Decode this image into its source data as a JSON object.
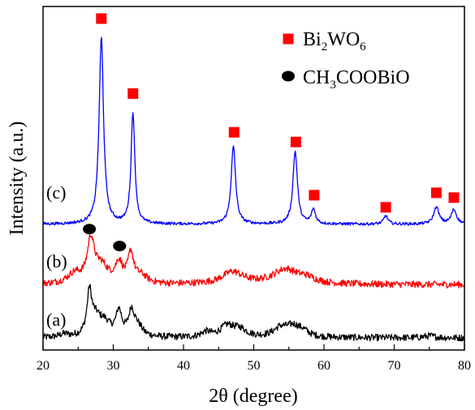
{
  "chart_data": {
    "type": "line",
    "xlabel": "2θ (degree)",
    "ylabel": "Intensity (a.u.)",
    "xlim": [
      20,
      80
    ],
    "xticks": [
      20,
      30,
      40,
      50,
      60,
      70,
      80
    ],
    "grid": false,
    "legend_position": "top-right",
    "legend": [
      {
        "marker": "square",
        "color": "#ff0000",
        "label": "Bi",
        "sub1": "2",
        "mid": "WO",
        "sub2": "6"
      },
      {
        "marker": "circle",
        "color": "#000000",
        "label": "CH",
        "sub1": "3",
        "mid": "COOBiO",
        "sub2": ""
      }
    ],
    "series": [
      {
        "name": "(a)",
        "color": "#000000",
        "baseline": 0.05,
        "peaks": [
          {
            "x": 23.0,
            "h": 0.012,
            "w": 0.8
          },
          {
            "x": 26.6,
            "h": 0.17,
            "w": 0.4
          },
          {
            "x": 27.5,
            "h": 0.07,
            "w": 0.9
          },
          {
            "x": 28.8,
            "h": 0.05,
            "w": 1.0
          },
          {
            "x": 30.8,
            "h": 0.1,
            "w": 0.5
          },
          {
            "x": 32.6,
            "h": 0.1,
            "w": 0.5
          },
          {
            "x": 33.5,
            "h": 0.04,
            "w": 0.8
          },
          {
            "x": 43.2,
            "h": 0.02,
            "w": 0.8
          },
          {
            "x": 46.2,
            "h": 0.045,
            "w": 1.2
          },
          {
            "x": 48.0,
            "h": 0.03,
            "w": 1.2
          },
          {
            "x": 53.8,
            "h": 0.035,
            "w": 1.2
          },
          {
            "x": 55.6,
            "h": 0.04,
            "w": 1.2
          },
          {
            "x": 57.0,
            "h": 0.02,
            "w": 1.0
          },
          {
            "x": 75.0,
            "h": 0.008,
            "w": 1.0
          }
        ]
      },
      {
        "name": "(b)",
        "color": "#ff0000",
        "baseline": 0.27,
        "peaks": [
          {
            "x": 24.5,
            "h": 0.04,
            "w": 1.2
          },
          {
            "x": 26.8,
            "h": 0.17,
            "w": 0.6
          },
          {
            "x": 28.3,
            "h": 0.07,
            "w": 1.2
          },
          {
            "x": 30.8,
            "h": 0.08,
            "w": 0.6
          },
          {
            "x": 32.5,
            "h": 0.12,
            "w": 0.5
          },
          {
            "x": 34.0,
            "h": 0.03,
            "w": 1.0
          },
          {
            "x": 47.0,
            "h": 0.05,
            "w": 1.8
          },
          {
            "x": 54.5,
            "h": 0.06,
            "w": 2.2
          },
          {
            "x": 57.5,
            "h": 0.02,
            "w": 1.5
          }
        ]
      },
      {
        "name": "(c)",
        "color": "#0000ff",
        "baseline": 0.52,
        "peaks": [
          {
            "x": 28.3,
            "h": 0.77,
            "w": 0.38
          },
          {
            "x": 32.8,
            "h": 0.46,
            "w": 0.32
          },
          {
            "x": 47.1,
            "h": 0.32,
            "w": 0.38
          },
          {
            "x": 55.9,
            "h": 0.3,
            "w": 0.38
          },
          {
            "x": 58.5,
            "h": 0.06,
            "w": 0.35
          },
          {
            "x": 68.8,
            "h": 0.035,
            "w": 0.35
          },
          {
            "x": 76.0,
            "h": 0.07,
            "w": 0.45
          },
          {
            "x": 78.5,
            "h": 0.06,
            "w": 0.45
          }
        ]
      }
    ],
    "markers": [
      {
        "type": "square",
        "color": "#ff0000",
        "x": 28.3,
        "y": 1.37
      },
      {
        "type": "square",
        "color": "#ff0000",
        "x": 32.8,
        "y": 1.06
      },
      {
        "type": "square",
        "color": "#ff0000",
        "x": 47.2,
        "y": 0.9
      },
      {
        "type": "square",
        "color": "#ff0000",
        "x": 56.0,
        "y": 0.86
      },
      {
        "type": "square",
        "color": "#ff0000",
        "x": 58.6,
        "y": 0.64
      },
      {
        "type": "square",
        "color": "#ff0000",
        "x": 68.8,
        "y": 0.59
      },
      {
        "type": "square",
        "color": "#ff0000",
        "x": 76.0,
        "y": 0.65
      },
      {
        "type": "square",
        "color": "#ff0000",
        "x": 78.5,
        "y": 0.63
      },
      {
        "type": "circle",
        "color": "#000000",
        "x": 26.6,
        "y": 0.5
      },
      {
        "type": "circle",
        "color": "#000000",
        "x": 30.9,
        "y": 0.43
      }
    ],
    "curve_labels": [
      {
        "text": "(c)",
        "series": 2
      },
      {
        "text": "(b)",
        "series": 1
      },
      {
        "text": "(a)",
        "series": 0
      }
    ]
  }
}
